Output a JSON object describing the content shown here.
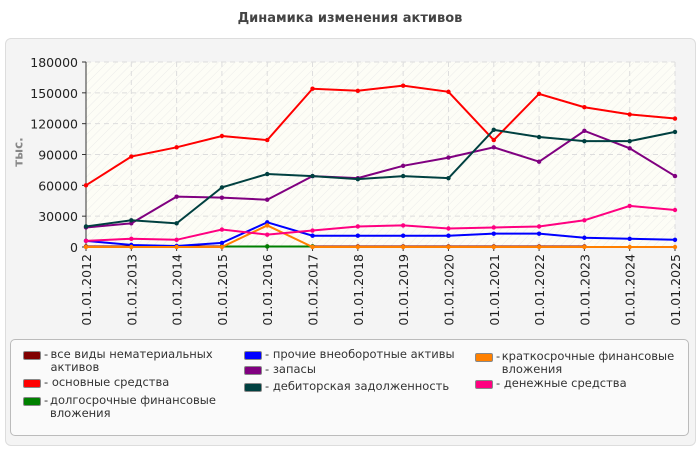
{
  "chart_data": {
    "type": "line",
    "title": "Динамика изменения активов",
    "ylabel": "тыс.",
    "xlabel": "",
    "ylim": [
      0,
      180000
    ],
    "yticks": [
      0,
      30000,
      60000,
      90000,
      120000,
      150000,
      180000
    ],
    "grid": true,
    "legend": "bottom",
    "categories": [
      "01.01.2012",
      "01.01.2013",
      "01.01.2014",
      "01.01.2015",
      "01.01.2016",
      "01.01.2017",
      "01.01.2018",
      "01.01.2019",
      "01.01.2020",
      "01.01.2021",
      "01.01.2022",
      "01.01.2023",
      "01.01.2024",
      "01.01.2025"
    ],
    "series": [
      {
        "name": "все виды нематериальных активов",
        "color": "#800000",
        "values": [
          500,
          500,
          500,
          500,
          500,
          500,
          500,
          500,
          500,
          500,
          500,
          500,
          null,
          null
        ]
      },
      {
        "name": "основные средства",
        "color": "#ff0000",
        "values": [
          60000,
          88000,
          97000,
          108000,
          104000,
          154000,
          152000,
          157000,
          151000,
          104000,
          149000,
          136000,
          129000,
          125000
        ]
      },
      {
        "name": "долгосрочные финансовые вложения",
        "color": "#008000",
        "values": [
          null,
          null,
          null,
          500,
          500,
          500,
          null,
          null,
          null,
          null,
          null,
          null,
          null,
          null
        ]
      },
      {
        "name": "прочие внеоборотные активы",
        "color": "#0000ff",
        "values": [
          6000,
          2000,
          1000,
          4000,
          24000,
          11000,
          11000,
          11000,
          11000,
          13000,
          13000,
          9000,
          8000,
          7000
        ]
      },
      {
        "name": "запасы",
        "color": "#800080",
        "values": [
          19000,
          23000,
          49000,
          48000,
          46000,
          69000,
          67000,
          79000,
          87000,
          97000,
          83000,
          113000,
          96000,
          69000
        ]
      },
      {
        "name": "дебиторская задолженность",
        "color": "#004040",
        "values": [
          20000,
          26000,
          23000,
          58000,
          71000,
          69000,
          66000,
          69000,
          67000,
          114000,
          107000,
          103000,
          103000,
          112000
        ]
      },
      {
        "name": "краткосрочные финансовые вложения",
        "color": "#ff8000",
        "values": [
          0,
          0,
          0,
          0,
          21000,
          0,
          0,
          0,
          0,
          0,
          0,
          0,
          0,
          0
        ]
      },
      {
        "name": "денежные средства",
        "color": "#ff0080",
        "values": [
          6000,
          8000,
          7000,
          17000,
          12000,
          16000,
          20000,
          21000,
          18000,
          19000,
          20000,
          26000,
          40000,
          36000
        ]
      }
    ]
  }
}
